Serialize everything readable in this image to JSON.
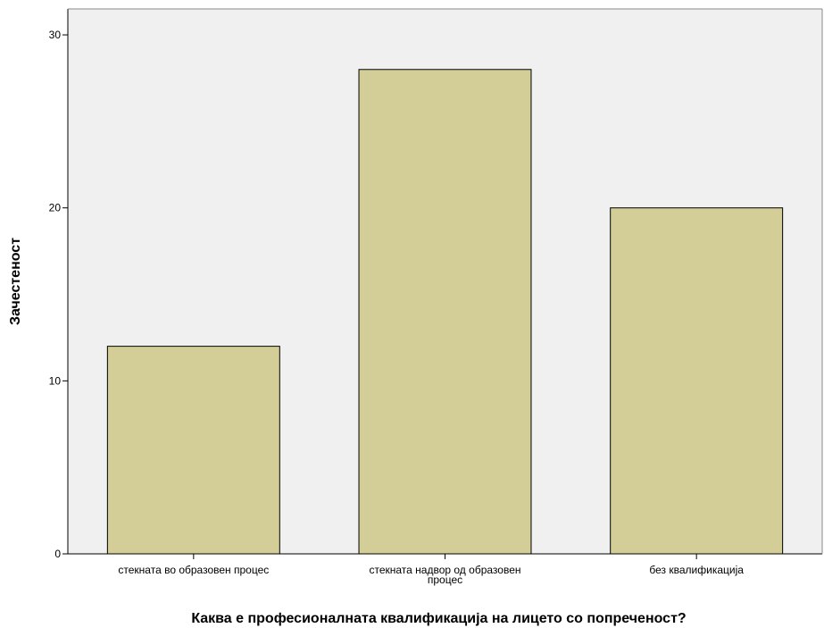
{
  "chart_data": {
    "type": "bar",
    "title": "",
    "xlabel": "Каква е професионалната квалификација на лицето со попреченост?",
    "ylabel": "Зачестеност",
    "categories": [
      [
        "стекната во образовен процес"
      ],
      [
        "стекната надвор од образовен",
        "процес"
      ],
      [
        "без квалификација"
      ]
    ],
    "values": [
      12,
      28,
      20
    ],
    "ylim": [
      0,
      31.5
    ],
    "yticks": [
      0,
      10,
      20,
      30
    ],
    "grid": false,
    "colors": {
      "plot_background": "#f0f0f0",
      "bar_fill": "#d3ce97",
      "bar_stroke": "#000000",
      "axis": "#000000"
    }
  }
}
